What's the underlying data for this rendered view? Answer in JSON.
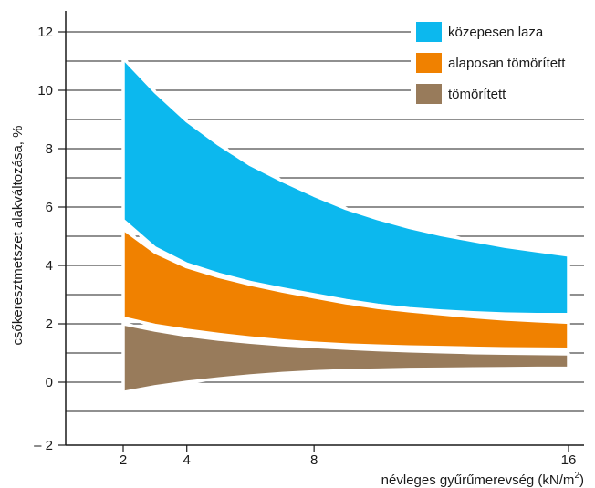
{
  "chart_data": {
    "type": "area",
    "title": "",
    "xlabel": "névleges gyűrűmerevség (kN/m",
    "xlabel_sup": "2",
    "xlabel_close": ")",
    "ylabel": "csőkeresztmetszet alakváltozása, %",
    "x_ticks": [
      "2",
      "4",
      "8",
      "16"
    ],
    "y_ticks": [
      "– 2",
      "0",
      "2",
      "4",
      "6",
      "8",
      "10",
      "12"
    ],
    "xlim": [
      0,
      16
    ],
    "ylim": [
      -2,
      12.5
    ],
    "grid_y_values": [
      -1,
      0,
      1,
      2,
      3,
      4,
      5,
      6,
      7,
      8,
      9,
      10,
      11,
      12
    ],
    "grid": "horizontal",
    "legend_position": "top-right",
    "series": [
      {
        "name": "közepesen laza",
        "color": "#0cb8ee",
        "x": [
          2,
          3,
          4,
          5,
          6,
          7,
          8,
          9,
          10,
          11,
          12,
          13,
          14,
          15,
          16
        ],
        "upper": [
          11.1,
          9.95,
          8.95,
          8.15,
          7.45,
          6.9,
          6.4,
          5.95,
          5.6,
          5.3,
          5.05,
          4.85,
          4.65,
          4.5,
          4.35
        ],
        "lower": [
          5.55,
          4.6,
          4.05,
          3.7,
          3.42,
          3.2,
          3.0,
          2.8,
          2.64,
          2.52,
          2.44,
          2.38,
          2.34,
          2.32,
          2.32
        ]
      },
      {
        "name": "alaposan tömörített",
        "color": "#f08100",
        "x": [
          2,
          3,
          4,
          5,
          6,
          7,
          8,
          9,
          10,
          11,
          12,
          13,
          14,
          15,
          16
        ],
        "upper": [
          5.25,
          4.45,
          3.95,
          3.62,
          3.35,
          3.12,
          2.92,
          2.72,
          2.56,
          2.44,
          2.34,
          2.24,
          2.16,
          2.1,
          2.05
        ],
        "lower": [
          2.2,
          1.95,
          1.78,
          1.64,
          1.52,
          1.42,
          1.34,
          1.28,
          1.24,
          1.21,
          1.19,
          1.17,
          1.15,
          1.14,
          1.13
        ]
      },
      {
        "name": "tömörített",
        "color": "#987b5b",
        "x": [
          2,
          3,
          4,
          5,
          6,
          7,
          8,
          9,
          10,
          11,
          12,
          13,
          14,
          15,
          16
        ],
        "upper": [
          2.0,
          1.78,
          1.6,
          1.47,
          1.37,
          1.28,
          1.22,
          1.16,
          1.11,
          1.07,
          1.04,
          1.01,
          0.99,
          0.98,
          0.97
        ],
        "lower": [
          -0.35,
          -0.15,
          0.0,
          0.12,
          0.22,
          0.3,
          0.36,
          0.4,
          0.42,
          0.44,
          0.45,
          0.46,
          0.47,
          0.48,
          0.48
        ]
      }
    ]
  }
}
